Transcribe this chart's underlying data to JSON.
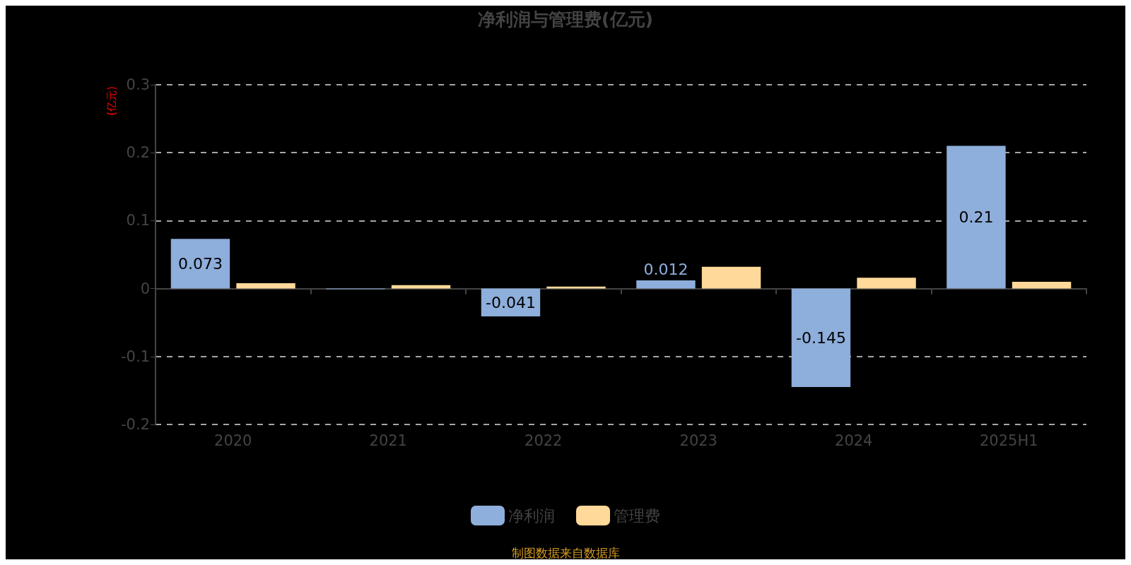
{
  "chart_data": {
    "type": "bar",
    "title": "净利润与管理费(亿元)",
    "ylabel": "(亿元)",
    "categories": [
      "2020",
      "2021",
      "2022",
      "2023",
      "2024",
      "2025H1"
    ],
    "series": [
      {
        "name": "净利润",
        "color": "#8eaedb",
        "values": [
          0.073,
          -0.001,
          -0.041,
          0.012,
          -0.145,
          0.21
        ],
        "value_labels": [
          "0.073",
          null,
          "-0.041",
          "0.012",
          "-0.145",
          "0.21"
        ]
      },
      {
        "name": "管理费",
        "color": "#ffd999",
        "values": [
          0.008,
          0.005,
          0.003,
          0.032,
          0.016,
          0.01
        ]
      }
    ],
    "ylim": [
      -0.2,
      0.3
    ],
    "yticks": [
      -0.2,
      -0.1,
      0,
      0.1,
      0.2,
      0.3
    ],
    "grid": "y",
    "legend": "bottom",
    "annotations": [
      "制图数据来自数据库"
    ]
  }
}
